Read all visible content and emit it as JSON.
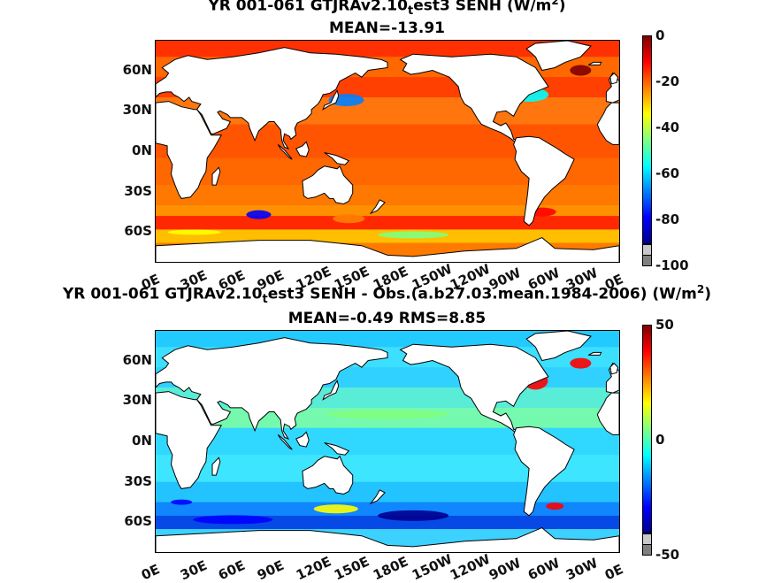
{
  "panels": [
    {
      "title_line1": {
        "pre": "YR 001-061 GTJRAv2.10",
        "sub": "t",
        "post": "est3  SENH (W/m",
        "sup": "2",
        "end": ")"
      },
      "title_line2": "MEAN=-13.91",
      "lat_labels": [
        "60N",
        "30N",
        "0N",
        "30S",
        "60S"
      ],
      "lon_labels": [
        "0E",
        "30E",
        "60E",
        "90E",
        "120E",
        "150E",
        "180E",
        "150W",
        "120W",
        "90W",
        "60W",
        "30W",
        "0E"
      ],
      "colorbar_ticks": [
        "0",
        "-20",
        "-40",
        "-60",
        "-80",
        "-100"
      ],
      "colorbar_range": [
        -100,
        0
      ],
      "map_style": "absolute"
    },
    {
      "title_line1": {
        "pre": "YR 001-061 GTJRAv2.10",
        "sub": "t",
        "post": "est3 SENH - Obs.(a.b27.03.mean.1984-2006) (W/m",
        "sup": "2",
        "end": ")"
      },
      "title_line2": "MEAN=-0.49 RMS=8.85",
      "lat_labels": [
        "60N",
        "30N",
        "0N",
        "30S",
        "60S"
      ],
      "lon_labels": [
        "0E",
        "30E",
        "60E",
        "90E",
        "120E",
        "150E",
        "180E",
        "150W",
        "120W",
        "90W",
        "60W",
        "30W",
        "0E"
      ],
      "colorbar_ticks": [
        "50",
        "0",
        "-50"
      ],
      "colorbar_range": [
        -50,
        50
      ],
      "map_style": "difference"
    }
  ],
  "colors": {
    "land": "#ffffff",
    "coast": "#000000",
    "missing": "#808080",
    "jet": [
      "#00008f",
      "#0000ff",
      "#0080ff",
      "#00ffff",
      "#80ff80",
      "#ffff00",
      "#ff8000",
      "#ff0000",
      "#800000"
    ]
  }
}
